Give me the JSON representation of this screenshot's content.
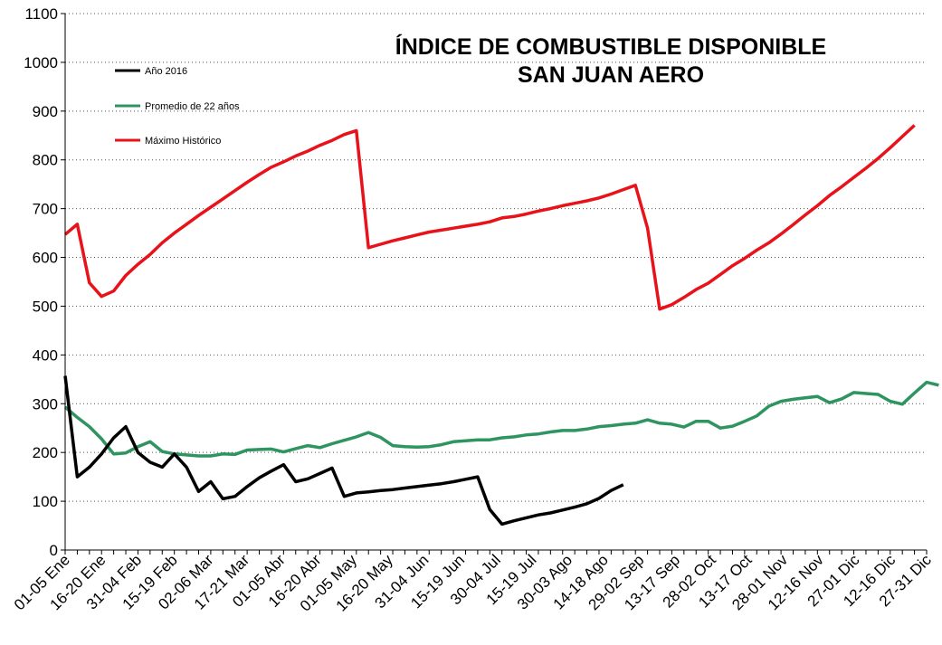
{
  "chart_data": {
    "type": "line",
    "title": "ÍNDICE DE COMBUSTIBLE DISPONIBLE",
    "subtitle": "SAN JUAN AERO",
    "xlabel": "",
    "ylabel": "",
    "ylim": [
      0,
      1100
    ],
    "y_ticks": [
      0,
      100,
      200,
      300,
      400,
      500,
      600,
      700,
      800,
      900,
      1000,
      1100
    ],
    "grid": "horizontal dotted",
    "legend_position": "top-left",
    "x_tick_labels": [
      "01-05 Ene",
      "16-20 Ene",
      "31-04 Feb",
      "15-19 Feb",
      "02-06 Mar",
      "17-21 Mar",
      "01-05 Abr",
      "16-20 Abr",
      "01-05 May",
      "16-20 May",
      "31-04 Jun",
      "15-19 Jun",
      "30-04 Jul",
      "15-19 Jul",
      "30-03 Ago",
      "14-18 Ago",
      "29-02 Sep",
      "13-17 Sep",
      "28-02 Oct",
      "13-17 Oct",
      "28-01 Nov",
      "12-16 Nov",
      "27-01 Dic",
      "12-16 Dic",
      "27-31 Dic"
    ],
    "series": [
      {
        "name": "Año 2016",
        "color": "#000000",
        "values": [
          357,
          150,
          170,
          197,
          230,
          253,
          200,
          180,
          170,
          197,
          170,
          120,
          140,
          105,
          110,
          130,
          148,
          162,
          175,
          140,
          146,
          157,
          168,
          110,
          117,
          119,
          122,
          124,
          127,
          130,
          133,
          136,
          140,
          145,
          150,
          83,
          53,
          60,
          66,
          72,
          76,
          82,
          88,
          95,
          106,
          122,
          134
        ]
      },
      {
        "name": "Promedio de 22 años",
        "color": "#2e9460",
        "values": [
          293,
          272,
          253,
          228,
          197,
          199,
          212,
          222,
          202,
          197,
          195,
          193,
          193,
          197,
          196,
          205,
          206,
          207,
          201,
          208,
          214,
          210,
          218,
          225,
          232,
          241,
          231,
          214,
          212,
          211,
          212,
          216,
          222,
          224,
          226,
          226,
          230,
          232,
          236,
          238,
          242,
          245,
          245,
          248,
          253,
          255,
          258,
          260,
          267,
          260,
          258,
          252,
          264,
          264,
          250,
          254,
          264,
          275,
          295,
          305,
          309,
          312,
          315,
          302,
          310,
          323,
          321,
          319,
          305,
          299,
          322,
          344,
          338
        ]
      },
      {
        "name": "Máximo Histórico",
        "color": "#e8131a",
        "values": [
          647,
          668,
          548,
          520,
          531,
          563,
          586,
          606,
          630,
          650,
          668,
          686,
          703,
          720,
          737,
          754,
          770,
          785,
          796,
          808,
          818,
          830,
          840,
          852,
          860,
          620,
          627,
          634,
          640,
          646,
          652,
          656,
          660,
          664,
          668,
          673,
          681,
          684,
          689,
          695,
          700,
          706,
          711,
          716,
          722,
          730,
          739,
          748,
          660,
          494,
          503,
          518,
          534,
          547,
          565,
          583,
          598,
          615,
          630,
          648,
          667,
          687,
          706,
          727,
          745,
          764,
          783,
          803,
          825,
          848,
          871
        ]
      }
    ]
  }
}
